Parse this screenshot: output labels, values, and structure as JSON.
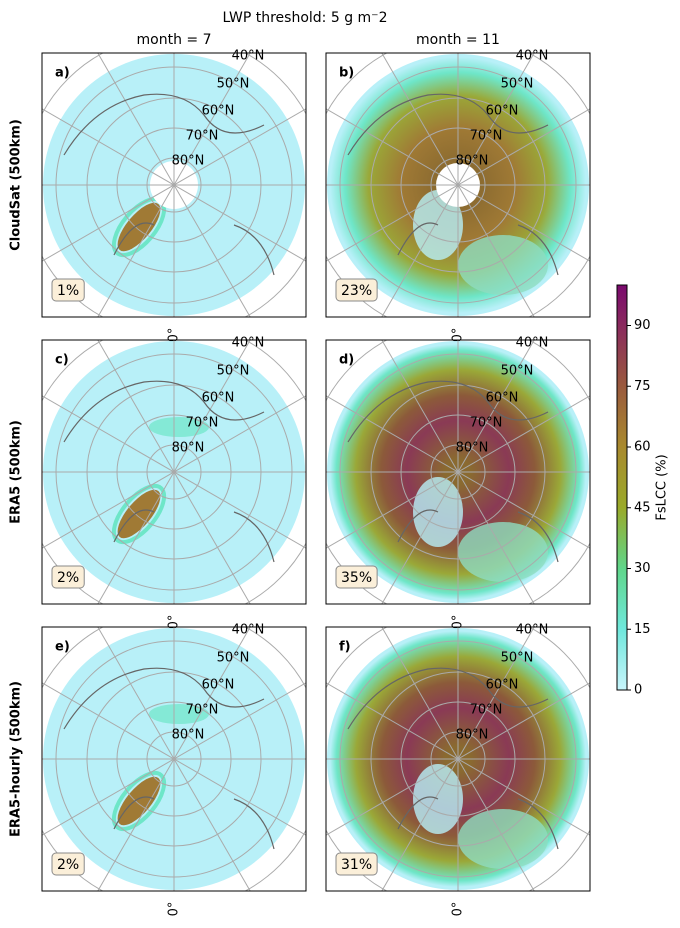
{
  "title": "LWP threshold: 5 g m⁻2",
  "columns": [
    "month = 7",
    "month = 11"
  ],
  "rows": [
    "CloudSat (500km)",
    "ERA5 (500km)",
    "ERA5-hourly (500km)"
  ],
  "panels": [
    {
      "letter": "a)",
      "fslcc": "1%"
    },
    {
      "letter": "b)",
      "fslcc": "23%"
    },
    {
      "letter": "c)",
      "fslcc": "2%"
    },
    {
      "letter": "d)",
      "fslcc": "35%"
    },
    {
      "letter": "e)",
      "fslcc": "2%"
    },
    {
      "letter": "f)",
      "fslcc": "31%"
    }
  ],
  "latitude_labels": [
    "40°N",
    "50°N",
    "60°N",
    "70°N",
    "80°N"
  ],
  "meridian_label": "0°",
  "colorbar": {
    "label": "FsLCC (%)",
    "lim": [
      0,
      100
    ],
    "ticks": [
      0,
      15,
      30,
      45,
      60,
      75,
      90
    ]
  }
}
